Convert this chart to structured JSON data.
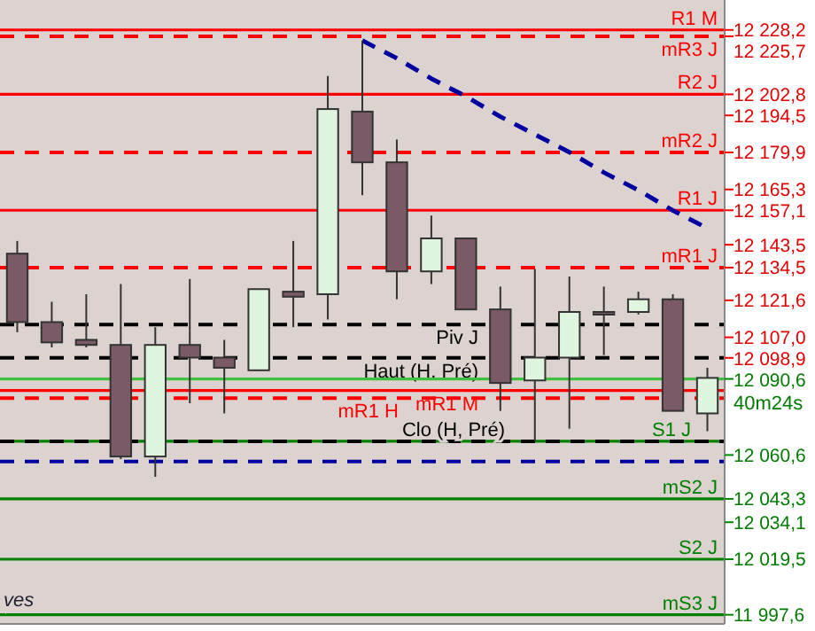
{
  "chart_data": {
    "type": "candlestick",
    "categories": [
      null,
      null,
      null,
      null,
      null,
      null,
      null,
      null,
      null,
      null,
      null,
      null,
      null,
      null,
      null,
      null,
      null,
      null,
      null,
      null,
      null
    ],
    "ohlc": [
      [
        12140,
        12145,
        12109,
        12113
      ],
      [
        12113,
        12121,
        12103,
        12105
      ],
      [
        12106,
        12124,
        12103,
        12104
      ],
      [
        12104,
        12128,
        12059,
        12060
      ],
      [
        12060,
        12111,
        12052,
        12104
      ],
      [
        12104,
        12130,
        12081,
        12099
      ],
      [
        12099,
        12106,
        12077,
        12095
      ],
      [
        12094,
        12126,
        12094,
        12126
      ],
      [
        12125,
        12145,
        12111,
        12123
      ],
      [
        12124,
        12210,
        12114,
        12197
      ],
      [
        12196,
        12224,
        12163,
        12176
      ],
      [
        12176,
        12185,
        12122,
        12133
      ],
      [
        12133,
        12155,
        12128,
        12146
      ],
      [
        12146,
        12146,
        12118,
        12118
      ],
      [
        12118,
        12127,
        12078,
        12089
      ],
      [
        12090,
        12134,
        12066,
        12099
      ],
      [
        12099,
        12131,
        12071,
        12117
      ],
      [
        12117,
        12127,
        12100,
        12116
      ],
      [
        12117,
        12125,
        12116,
        12122
      ],
      [
        12122,
        12124,
        12078,
        12078
      ],
      [
        12077,
        12095,
        12070,
        12091
      ]
    ],
    "series": [
      {
        "type": "line",
        "color": "#0000a0",
        "line_style": "dashed",
        "values": [
          null,
          null,
          null,
          null,
          null,
          null,
          null,
          null,
          null,
          null,
          12224,
          12217,
          12209,
          12202,
          12194,
          12187,
          12180,
          12172,
          12165,
          12157,
          12150
        ]
      }
    ],
    "ref_lines": [
      {
        "axis": "y",
        "value": 12228.2,
        "label": "R1 M",
        "color": "#ff0000",
        "line_style": "solid"
      },
      {
        "axis": "y",
        "value": 12225.7,
        "label": "mR3 J",
        "color": "#ff0000",
        "line_style": "dashed"
      },
      {
        "axis": "y",
        "value": 12202.8,
        "label": "R2 J",
        "color": "#ff0000",
        "line_style": "solid"
      },
      {
        "axis": "y",
        "value": 12179.9,
        "label": "mR2 J",
        "color": "#ff0000",
        "line_style": "dashed"
      },
      {
        "axis": "y",
        "value": 12157.1,
        "label": "R1 J",
        "color": "#ff0000",
        "line_style": "solid"
      },
      {
        "axis": "y",
        "value": 12134.5,
        "label": "mR1 J",
        "color": "#ff0000",
        "line_style": "dashed"
      },
      {
        "axis": "y",
        "value": 12112,
        "label": "Piv J",
        "color": "#000000",
        "line_style": "dashed"
      },
      {
        "axis": "y",
        "value": 12098.9,
        "label": "Haut (H, Pré)",
        "color": "#000000",
        "line_style": "dashed"
      },
      {
        "axis": "y",
        "value": 12090.6,
        "color": "#40c040",
        "line_style": "solid"
      },
      {
        "axis": "y",
        "value": 12086,
        "label": "mR1 M",
        "color": "#ff0000",
        "line_style": "solid"
      },
      {
        "axis": "y",
        "value": 12083,
        "label": "mR1 H",
        "color": "#ff0000",
        "line_style": "dashed"
      },
      {
        "axis": "y",
        "value": 12066,
        "label": "S1 J",
        "color": "#008000",
        "line_style": "solid"
      },
      {
        "axis": "y",
        "value": 12066,
        "label": "Clo (H, Pré)",
        "color": "#000000",
        "line_style": "dashed"
      },
      {
        "axis": "y",
        "value": 12058,
        "color": "#0000a0",
        "line_style": "dashed"
      },
      {
        "axis": "y",
        "value": 12043.3,
        "label": "mS2 J",
        "color": "#008000",
        "line_style": "solid"
      },
      {
        "axis": "y",
        "value": 12019.5,
        "label": "S2 J",
        "color": "#008000",
        "line_style": "solid"
      },
      {
        "axis": "y",
        "value": 11997.6,
        "label": "mS3 J",
        "color": "#008000",
        "line_style": "solid"
      }
    ],
    "ylim": [
      11994,
      12240
    ],
    "yticks": [
      {
        "value": 12228.2,
        "label": "12 228,2"
      },
      {
        "value": 12225.7,
        "label": "12 225,7"
      },
      {
        "value": 12202.8,
        "label": "12 202,8"
      },
      {
        "value": 12194.5,
        "label": "12 194,5"
      },
      {
        "value": 12179.9,
        "label": "12 179,9"
      },
      {
        "value": 12165.3,
        "label": "12 165,3"
      },
      {
        "value": 12157.1,
        "label": "12 157,1"
      },
      {
        "value": 12143.5,
        "label": "12 143,5"
      },
      {
        "value": 12134.5,
        "label": "12 134,5"
      },
      {
        "value": 12121.6,
        "label": "12 121,6"
      },
      {
        "value": 12107,
        "label": "12 107,0"
      },
      {
        "value": 12098.9,
        "label": "12 098,9"
      },
      {
        "value": 12090.6,
        "label": "12 090,6"
      },
      {
        "value": 12060.6,
        "label": "12 060,6"
      },
      {
        "value": 12043.3,
        "label": "12 043,3"
      },
      {
        "value": 12034.1,
        "label": "12 034,1"
      },
      {
        "value": 12019.5,
        "label": "12 019,5"
      },
      {
        "value": 11997.6,
        "label": "11 997,6"
      }
    ],
    "tick_labels": "y",
    "grid": false,
    "annotations": [
      "40m24s",
      "ves"
    ]
  }
}
